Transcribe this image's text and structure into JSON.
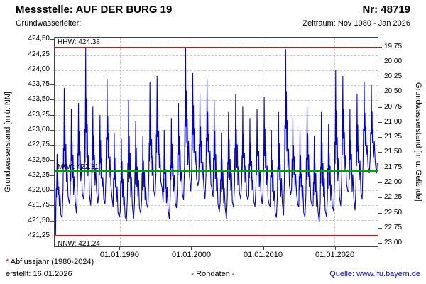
{
  "header": {
    "title": "Messstelle: AUF DER BURG 19",
    "number": "Nr: 48719",
    "aquifer_label": "Grundwasserleiter:",
    "period_label": "Zeitraum: Nov 1980 - Jan 2026"
  },
  "footer": {
    "footnote_asterisk": "*",
    "footnote_text": " Abflussjahr (1980-2024)",
    "created": "erstellt: 16.01.2026",
    "center": "- Rohdaten -",
    "source": "Quelle: www.lfu.bayern.de"
  },
  "colors": {
    "series_blue": "#0000dd",
    "reference_red": "#ff0000",
    "mean_green": "#00a000",
    "link_blue": "#0000ee",
    "footnote_asterisk_red": "#cc0000",
    "grid_gray": "#c9c9c9"
  },
  "chart_data": {
    "type": "line",
    "title": "Messstelle: AUF DER BURG 19 / Nr: 48719 - Grundwasserstand Rohdaten Nov 1980 - Jan 2026",
    "x_axis": {
      "ticks": [
        "01.01.1990",
        "01.01.2000",
        "01.01.2010",
        "01.01.2020"
      ],
      "tick_years": [
        1990,
        2000,
        2010,
        2020
      ],
      "range_decimal_years": [
        1980.85,
        2026.08
      ],
      "grid": true
    },
    "y_axis_left": {
      "label": "Grundwasserstand [m ü. NN]",
      "range": [
        421.06,
        424.54
      ],
      "ticks": [
        {
          "value": 424.5,
          "label": "424,50"
        },
        {
          "value": 424.25,
          "label": "424,25"
        },
        {
          "value": 424.0,
          "label": "424,00"
        },
        {
          "value": 423.75,
          "label": "423,75"
        },
        {
          "value": 423.5,
          "label": "423,50"
        },
        {
          "value": 423.25,
          "label": "423,25"
        },
        {
          "value": 423.0,
          "label": "423,00"
        },
        {
          "value": 422.75,
          "label": "422,75"
        },
        {
          "value": 422.5,
          "label": "422,50"
        },
        {
          "value": 422.25,
          "label": "422,25"
        },
        {
          "value": 422.0,
          "label": "422,00"
        },
        {
          "value": 421.75,
          "label": "421,75"
        },
        {
          "value": 421.5,
          "label": "421,50"
        },
        {
          "value": 421.25,
          "label": "421,25"
        }
      ]
    },
    "y_axis_right": {
      "label": "Grundwasserstand [m u. Gelände]",
      "ground_elevation": 444.13,
      "ticks": [
        {
          "value": 19.75,
          "label": "19,75"
        },
        {
          "value": 20.0,
          "label": "20,00"
        },
        {
          "value": 20.25,
          "label": "20,25"
        },
        {
          "value": 20.5,
          "label": "20,50"
        },
        {
          "value": 20.75,
          "label": "20,75"
        },
        {
          "value": 21.0,
          "label": "21,00"
        },
        {
          "value": 21.25,
          "label": "21,25"
        },
        {
          "value": 21.5,
          "label": "21,50"
        },
        {
          "value": 21.75,
          "label": "21,75"
        },
        {
          "value": 22.0,
          "label": "22,00"
        },
        {
          "value": 22.25,
          "label": "22,25"
        },
        {
          "value": 22.5,
          "label": "22,50"
        },
        {
          "value": 22.75,
          "label": "22,75"
        },
        {
          "value": 23.0,
          "label": "23,00"
        }
      ]
    },
    "reference_lines": [
      {
        "name": "HHW",
        "label": "HHW: 424.38",
        "value": 424.38,
        "color": "#ff0000",
        "label_position": "above"
      },
      {
        "name": "MW",
        "label": "MW*: 422.31",
        "value": 422.31,
        "color": "#00a000",
        "label_position": "above"
      },
      {
        "name": "NNW",
        "label": "NNW: 421.24",
        "value": 421.24,
        "color": "#ff0000",
        "label_position": "below"
      }
    ],
    "series": [
      {
        "name": "Grundwasserstand (Rohdaten)",
        "color": "#0000dd",
        "lead_in_points": [
          [
            1980.85,
            422.3
          ],
          [
            1980.92,
            421.6
          ],
          [
            1980.98,
            421.24
          ]
        ],
        "end_point": [
          2026.02,
          422.45
        ],
        "annual_peak_low": {
          "columns": [
            "year",
            "spring_peak_m_NN",
            "autumn_low_m_NN"
          ],
          "rows": [
            [
              1981,
              422.6,
              421.55
            ],
            [
              1982,
              423.7,
              421.75
            ],
            [
              1983,
              423.35,
              421.65
            ],
            [
              1984,
              423.45,
              421.85
            ],
            [
              1985,
              424.38,
              421.7
            ],
            [
              1986,
              423.4,
              421.8
            ],
            [
              1987,
              423.25,
              421.75
            ],
            [
              1988,
              423.85,
              421.9
            ],
            [
              1989,
              422.95,
              421.55
            ],
            [
              1990,
              422.85,
              421.45
            ],
            [
              1991,
              423.5,
              421.55
            ],
            [
              1992,
              423.15,
              421.6
            ],
            [
              1993,
              422.9,
              421.65
            ],
            [
              1994,
              423.8,
              421.9
            ],
            [
              1995,
              423.9,
              422.0
            ],
            [
              1996,
              423.0,
              421.55
            ],
            [
              1997,
              423.2,
              421.7
            ],
            [
              1998,
              423.45,
              421.8
            ],
            [
              1999,
              424.38,
              422.0
            ],
            [
              2000,
              423.95,
              422.05
            ],
            [
              2001,
              423.6,
              421.9
            ],
            [
              2002,
              423.85,
              422.0
            ],
            [
              2003,
              423.5,
              421.6
            ],
            [
              2004,
              422.95,
              421.55
            ],
            [
              2005,
              423.3,
              421.7
            ],
            [
              2006,
              423.6,
              421.8
            ],
            [
              2007,
              423.4,
              421.85
            ],
            [
              2008,
              423.2,
              421.7
            ],
            [
              2009,
              423.35,
              421.8
            ],
            [
              2010,
              423.55,
              421.75
            ],
            [
              2011,
              423.0,
              421.5
            ],
            [
              2012,
              423.3,
              421.6
            ],
            [
              2013,
              424.35,
              421.9
            ],
            [
              2014,
              423.2,
              421.8
            ],
            [
              2015,
              423.0,
              421.55
            ],
            [
              2016,
              423.4,
              421.7
            ],
            [
              2017,
              422.9,
              421.5
            ],
            [
              2018,
              423.3,
              421.55
            ],
            [
              2019,
              423.1,
              421.6
            ],
            [
              2020,
              424.0,
              421.75
            ],
            [
              2021,
              423.9,
              421.95
            ],
            [
              2022,
              423.35,
              421.7
            ],
            [
              2023,
              423.6,
              421.85
            ],
            [
              2024,
              423.8,
              422.25
            ],
            [
              2025,
              423.75,
              422.3
            ]
          ]
        }
      }
    ]
  }
}
